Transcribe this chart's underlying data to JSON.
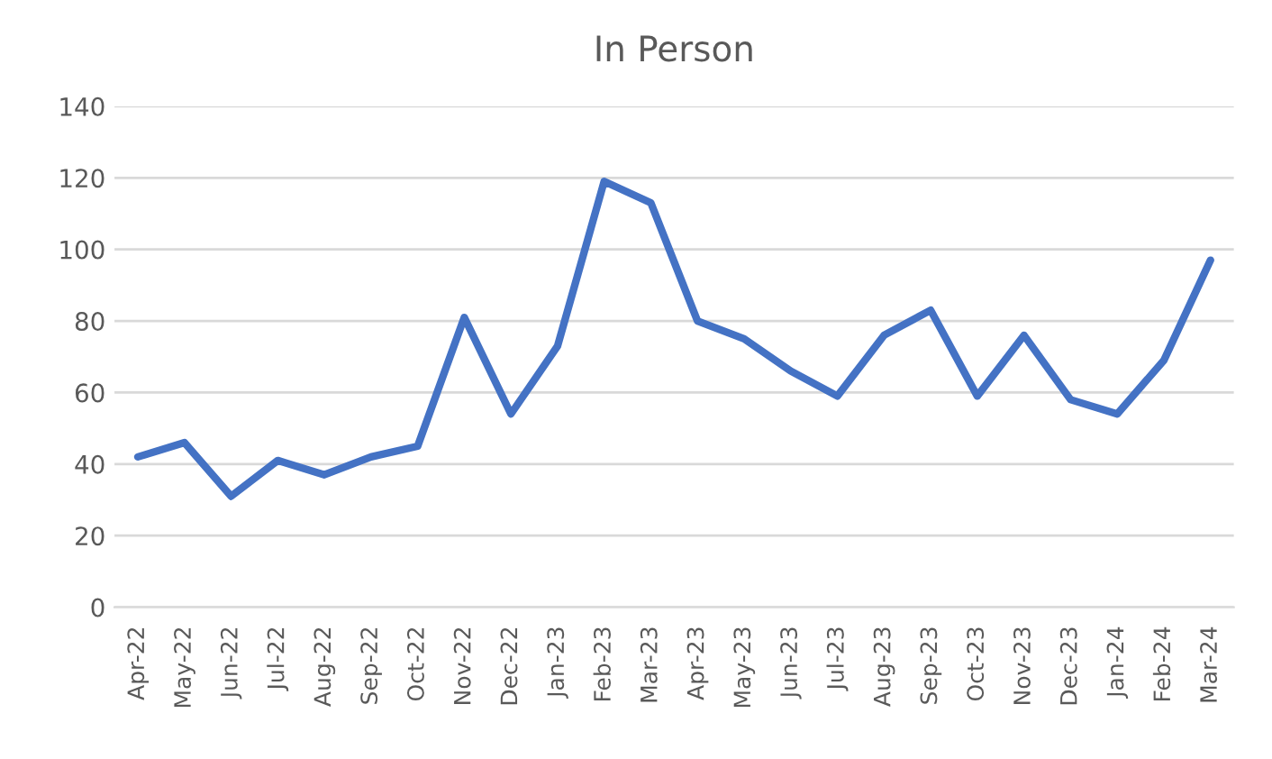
{
  "chart_data": {
    "type": "line",
    "title": "In Person",
    "categories": [
      "Apr-22",
      "May-22",
      "Jun-22",
      "Jul-22",
      "Aug-22",
      "Sep-22",
      "Oct-22",
      "Nov-22",
      "Dec-22",
      "Jan-23",
      "Feb-23",
      "Mar-23",
      "Apr-23",
      "May-23",
      "Jun-23",
      "Jul-23",
      "Aug-23",
      "Sep-23",
      "Oct-23",
      "Nov-23",
      "Dec-23",
      "Jan-24",
      "Feb-24",
      "Mar-24"
    ],
    "series": [
      {
        "color": "#4472c4",
        "values": [
          42,
          46,
          31,
          41,
          37,
          42,
          45,
          81,
          54,
          73,
          119,
          113,
          80,
          75,
          66,
          59,
          76,
          83,
          59,
          76,
          58,
          54,
          69,
          97
        ]
      }
    ],
    "ylim": [
      0,
      140
    ],
    "yticks": [
      0,
      20,
      40,
      60,
      80,
      100,
      120,
      140
    ],
    "grid": "y",
    "legend": false,
    "marker": "none",
    "line_style": "solid"
  }
}
